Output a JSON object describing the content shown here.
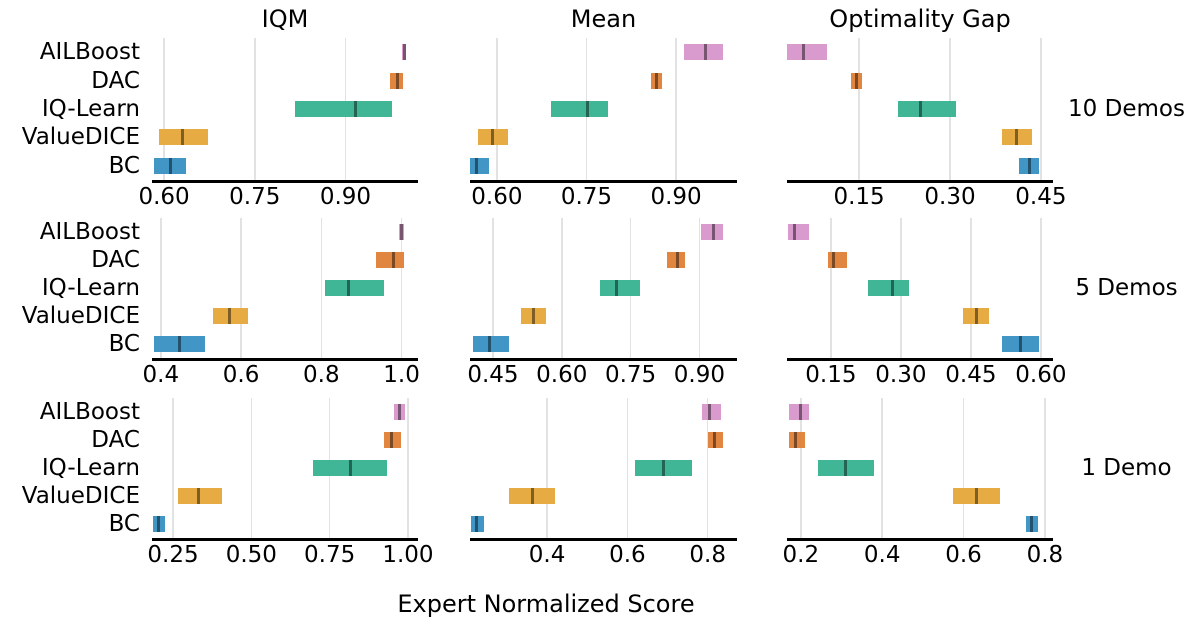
{
  "figure": {
    "xlabel": "Expert Normalized Score",
    "col_titles": [
      "IQM",
      "Mean",
      "Optimality Gap"
    ],
    "row_labels": [
      "10 Demos",
      "5 Demos",
      "1 Demo"
    ],
    "algorithms": [
      "AILBoost",
      "DAC",
      "IQ-Learn",
      "ValueDICE",
      "BC"
    ],
    "palette": {
      "AILBoost": "#D99ACD",
      "DAC": "#E08640",
      "IQ-Learn": "#41B696",
      "ValueDICE": "#E6AB43",
      "BC": "#4196C5"
    },
    "grid_color": "#E2E2E2",
    "axis_color": "#000000",
    "point_line_color": "rgba(0,0,0,0.45)"
  },
  "chart_data": [
    {
      "type": "bar",
      "orientation": "horizontal-interval",
      "title": "IQM",
      "group": "10 Demos",
      "xlim": [
        0.58,
        1.02
      ],
      "ticks": [
        0.6,
        0.75,
        0.9
      ],
      "tick_labels": [
        "0.60",
        "0.75",
        "0.90"
      ],
      "series": [
        {
          "name": "AILBoost",
          "interval": [
            0.994,
            1.0
          ],
          "point": 0.997
        },
        {
          "name": "DAC",
          "interval": [
            0.974,
            0.996
          ],
          "point": 0.986
        },
        {
          "name": "IQ-Learn",
          "interval": [
            0.817,
            0.977
          ],
          "point": 0.917
        },
        {
          "name": "ValueDICE",
          "interval": [
            0.591,
            0.673
          ],
          "point": 0.631
        },
        {
          "name": "BC",
          "interval": [
            0.584,
            0.636
          ],
          "point": 0.61
        }
      ]
    },
    {
      "type": "bar",
      "orientation": "horizontal-interval",
      "title": "Mean",
      "group": "10 Demos",
      "xlim": [
        0.555,
        1.002
      ],
      "ticks": [
        0.6,
        0.75,
        0.9
      ],
      "tick_labels": [
        "0.60",
        "0.75",
        "0.90"
      ],
      "series": [
        {
          "name": "AILBoost",
          "interval": [
            0.913,
            0.978
          ],
          "point": 0.949
        },
        {
          "name": "DAC",
          "interval": [
            0.858,
            0.876
          ],
          "point": 0.867
        },
        {
          "name": "IQ-Learn",
          "interval": [
            0.69,
            0.786
          ],
          "point": 0.751
        },
        {
          "name": "ValueDICE",
          "interval": [
            0.568,
            0.618
          ],
          "point": 0.593
        },
        {
          "name": "BC",
          "interval": [
            0.555,
            0.587
          ],
          "point": 0.566
        }
      ]
    },
    {
      "type": "bar",
      "orientation": "horizontal-interval",
      "title": "Optimality Gap",
      "group": "10 Demos",
      "xlim": [
        0.031,
        0.47
      ],
      "ticks": [
        0.15,
        0.3,
        0.45
      ],
      "tick_labels": [
        "0.15",
        "0.30",
        "0.45"
      ],
      "series": [
        {
          "name": "AILBoost",
          "interval": [
            0.031,
            0.097
          ],
          "point": 0.059
        },
        {
          "name": "DAC",
          "interval": [
            0.137,
            0.155
          ],
          "point": 0.146
        },
        {
          "name": "IQ-Learn",
          "interval": [
            0.214,
            0.31
          ],
          "point": 0.252
        },
        {
          "name": "ValueDICE",
          "interval": [
            0.386,
            0.435
          ],
          "point": 0.409
        },
        {
          "name": "BC",
          "interval": [
            0.414,
            0.447
          ],
          "point": 0.431
        }
      ]
    },
    {
      "type": "bar",
      "orientation": "horizontal-interval",
      "title": "IQM",
      "group": "5 Demos",
      "xlim": [
        0.378,
        1.041
      ],
      "ticks": [
        0.4,
        0.6,
        0.8,
        1.0
      ],
      "tick_labels": [
        "0.4",
        "0.6",
        "0.8",
        "1.0"
      ],
      "series": [
        {
          "name": "AILBoost",
          "interval": [
            0.993,
            1.007
          ],
          "point": 1.0
        },
        {
          "name": "DAC",
          "interval": [
            0.936,
            1.005
          ],
          "point": 0.981
        },
        {
          "name": "IQ-Learn",
          "interval": [
            0.81,
            0.956
          ],
          "point": 0.867
        },
        {
          "name": "ValueDICE",
          "interval": [
            0.531,
            0.618
          ],
          "point": 0.571
        },
        {
          "name": "BC",
          "interval": [
            0.383,
            0.511
          ],
          "point": 0.447
        }
      ]
    },
    {
      "type": "bar",
      "orientation": "horizontal-interval",
      "title": "Mean",
      "group": "5 Demos",
      "xlim": [
        0.4,
        0.982
      ],
      "ticks": [
        0.45,
        0.6,
        0.75,
        0.9
      ],
      "tick_labels": [
        "0.45",
        "0.60",
        "0.75",
        "0.90"
      ],
      "series": [
        {
          "name": "AILBoost",
          "interval": [
            0.904,
            0.952
          ],
          "point": 0.93
        },
        {
          "name": "DAC",
          "interval": [
            0.829,
            0.868
          ],
          "point": 0.852
        },
        {
          "name": "IQ-Learn",
          "interval": [
            0.684,
            0.771
          ],
          "point": 0.719
        },
        {
          "name": "ValueDICE",
          "interval": [
            0.511,
            0.565
          ],
          "point": 0.538
        },
        {
          "name": "BC",
          "interval": [
            0.407,
            0.484
          ],
          "point": 0.443
        }
      ]
    },
    {
      "type": "bar",
      "orientation": "horizontal-interval",
      "title": "Optimality Gap",
      "group": "5 Demos",
      "xlim": [
        0.056,
        0.626
      ],
      "ticks": [
        0.15,
        0.3,
        0.45,
        0.6
      ],
      "tick_labels": [
        "0.15",
        "0.30",
        "0.45",
        "0.60"
      ],
      "series": [
        {
          "name": "AILBoost",
          "interval": [
            0.058,
            0.103
          ],
          "point": 0.073
        },
        {
          "name": "DAC",
          "interval": [
            0.143,
            0.184
          ],
          "point": 0.156
        },
        {
          "name": "IQ-Learn",
          "interval": [
            0.229,
            0.317
          ],
          "point": 0.283
        },
        {
          "name": "ValueDICE",
          "interval": [
            0.433,
            0.489
          ],
          "point": 0.463
        },
        {
          "name": "BC",
          "interval": [
            0.517,
            0.596
          ],
          "point": 0.556
        }
      ]
    },
    {
      "type": "bar",
      "orientation": "horizontal-interval",
      "title": "IQM",
      "group": "1 Demo",
      "xlim": [
        0.183,
        1.032
      ],
      "ticks": [
        0.25,
        0.5,
        0.75,
        1.0
      ],
      "tick_labels": [
        "0.25",
        "0.50",
        "0.75",
        "1.00"
      ],
      "series": [
        {
          "name": "AILBoost",
          "interval": [
            0.956,
            0.991
          ],
          "point": 0.973
        },
        {
          "name": "DAC",
          "interval": [
            0.924,
            0.978
          ],
          "point": 0.946
        },
        {
          "name": "IQ-Learn",
          "interval": [
            0.697,
            0.933
          ],
          "point": 0.818
        },
        {
          "name": "ValueDICE",
          "interval": [
            0.266,
            0.406
          ],
          "point": 0.333
        },
        {
          "name": "BC",
          "interval": [
            0.186,
            0.224
          ],
          "point": 0.205
        }
      ]
    },
    {
      "type": "bar",
      "orientation": "horizontal-interval",
      "title": "Mean",
      "group": "1 Demo",
      "xlim": [
        0.208,
        0.873
      ],
      "ticks": [
        0.4,
        0.6,
        0.8
      ],
      "tick_labels": [
        "0.4",
        "0.6",
        "0.8"
      ],
      "series": [
        {
          "name": "AILBoost",
          "interval": [
            0.785,
            0.833
          ],
          "point": 0.805
        },
        {
          "name": "DAC",
          "interval": [
            0.8,
            0.838
          ],
          "point": 0.818
        },
        {
          "name": "IQ-Learn",
          "interval": [
            0.618,
            0.762
          ],
          "point": 0.69
        },
        {
          "name": "ValueDICE",
          "interval": [
            0.305,
            0.42
          ],
          "point": 0.363
        },
        {
          "name": "BC",
          "interval": [
            0.21,
            0.243
          ],
          "point": 0.223
        }
      ]
    },
    {
      "type": "bar",
      "orientation": "horizontal-interval",
      "title": "Optimality Gap",
      "group": "1 Demo",
      "xlim": [
        0.166,
        0.82
      ],
      "ticks": [
        0.2,
        0.4,
        0.6,
        0.8
      ],
      "tick_labels": [
        "0.2",
        "0.4",
        "0.6",
        "0.8"
      ],
      "series": [
        {
          "name": "AILBoost",
          "interval": [
            0.171,
            0.22
          ],
          "point": 0.198
        },
        {
          "name": "DAC",
          "interval": [
            0.171,
            0.21
          ],
          "point": 0.188
        },
        {
          "name": "IQ-Learn",
          "interval": [
            0.241,
            0.38
          ],
          "point": 0.31
        },
        {
          "name": "ValueDICE",
          "interval": [
            0.573,
            0.69
          ],
          "point": 0.631
        },
        {
          "name": "BC",
          "interval": [
            0.754,
            0.783
          ],
          "point": 0.768
        }
      ]
    }
  ]
}
